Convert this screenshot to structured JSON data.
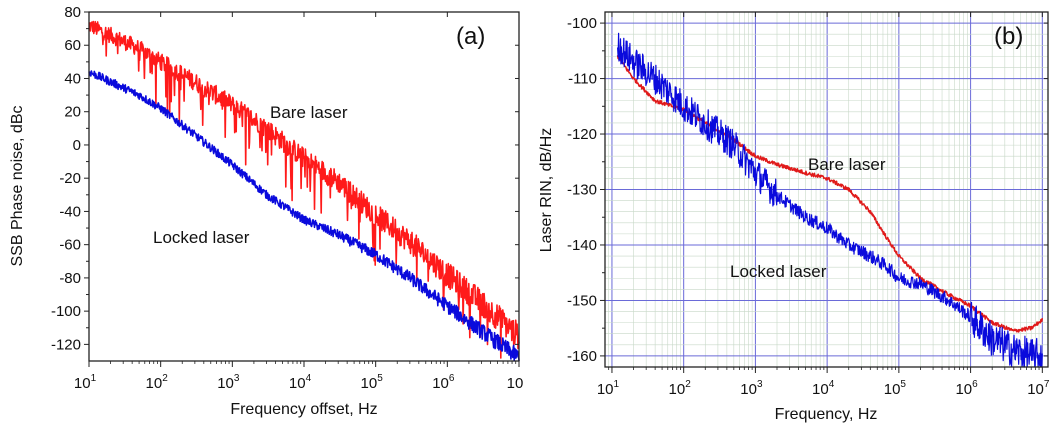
{
  "chart_data": [
    {
      "type": "line",
      "panel_label": "(a)",
      "xlabel": "Frequency offset, Hz",
      "ylabel": "SSB Phase noise, dBc",
      "xscale": "log",
      "xlim": [
        10,
        10000000
      ],
      "ylim": [
        -130,
        80
      ],
      "xticks": [
        {
          "base": "10",
          "exp": "1"
        },
        {
          "base": "10",
          "exp": "2"
        },
        {
          "base": "10",
          "exp": "3"
        },
        {
          "base": "10",
          "exp": "4"
        },
        {
          "base": "10",
          "exp": "5"
        },
        {
          "base": "10",
          "exp": "6"
        },
        {
          "base": "10",
          "exp": ""
        }
      ],
      "yticks": [
        "80",
        "60",
        "40",
        "20",
        "0",
        "-20",
        "-40",
        "-60",
        "-80",
        "-100",
        "-120"
      ],
      "ytick_values": [
        80,
        60,
        40,
        20,
        0,
        -20,
        -40,
        -60,
        -80,
        -100,
        -120
      ],
      "grid": false,
      "series": [
        {
          "name": "Bare laser",
          "color": "#ff1a1a",
          "x": [
            10,
            20,
            50,
            100,
            300,
            1000,
            3000,
            10000,
            30000,
            100000,
            300000,
            1000000,
            3000000,
            10000000
          ],
          "y": [
            72,
            66,
            58,
            50,
            38,
            24,
            10,
            -8,
            -22,
            -42,
            -58,
            -78,
            -95,
            -115
          ]
        },
        {
          "name": "Locked laser",
          "color": "#0a0adc",
          "x": [
            10,
            20,
            50,
            100,
            300,
            1000,
            3000,
            10000,
            30000,
            100000,
            300000,
            1000000,
            3000000,
            10000000
          ],
          "y": [
            44,
            38,
            30,
            22,
            6,
            -12,
            -30,
            -45,
            -54,
            -66,
            -80,
            -97,
            -112,
            -128
          ]
        }
      ],
      "annotations": [
        {
          "text": "Bare laser",
          "x": 15000,
          "y": 21
        },
        {
          "text": "Locked laser",
          "x": 400,
          "y": -57
        }
      ]
    },
    {
      "type": "line",
      "panel_label": "(b)",
      "xlabel": "Frequency, Hz",
      "ylabel": "Laser RIN, dB/Hz",
      "xscale": "log",
      "xlim": [
        8,
        12000000
      ],
      "ylim": [
        -162,
        -98
      ],
      "xticks": [
        {
          "base": "10",
          "exp": "1"
        },
        {
          "base": "10",
          "exp": "2"
        },
        {
          "base": "10",
          "exp": "3"
        },
        {
          "base": "10",
          "exp": "4"
        },
        {
          "base": "10",
          "exp": "5"
        },
        {
          "base": "10",
          "exp": "6"
        },
        {
          "base": "10",
          "exp": "7"
        }
      ],
      "yticks": [
        "-100",
        "-110",
        "-120",
        "-130",
        "-140",
        "-150",
        "-160"
      ],
      "ytick_values": [
        -100,
        -110,
        -120,
        -130,
        -140,
        -150,
        -160
      ],
      "grid": true,
      "series": [
        {
          "name": "Bare laser",
          "color": "#e01a1a",
          "x": [
            12,
            20,
            40,
            70,
            100,
            200,
            500,
            1000,
            2000,
            5000,
            10000,
            20000,
            40000,
            70000,
            100000,
            200000,
            500000,
            1000000,
            2000000,
            4000000,
            7000000,
            10000000
          ],
          "y": [
            -106,
            -110,
            -114,
            -115,
            -115.5,
            -118,
            -121,
            -124,
            -125.5,
            -127,
            -128,
            -130,
            -134,
            -139,
            -142,
            -146,
            -149,
            -151,
            -154,
            -155.5,
            -155,
            -153.5
          ]
        },
        {
          "name": "Locked laser",
          "color": "#0a0adc",
          "x": [
            12,
            20,
            40,
            70,
            100,
            200,
            500,
            1000,
            2000,
            5000,
            10000,
            20000,
            40000,
            70000,
            100000,
            200000,
            500000,
            1000000,
            2000000,
            4000000,
            7000000,
            10000000
          ],
          "y": [
            -104,
            -107,
            -110,
            -113,
            -115,
            -118,
            -122,
            -127,
            -131,
            -135,
            -137,
            -140,
            -142,
            -144,
            -146,
            -147,
            -150,
            -153,
            -157,
            -159,
            -160,
            -160
          ]
        }
      ],
      "annotations": [
        {
          "text": "Bare laser",
          "x": 50000,
          "y": -128
        },
        {
          "text": "Locked laser",
          "x": 8000,
          "y": -147
        }
      ]
    }
  ]
}
